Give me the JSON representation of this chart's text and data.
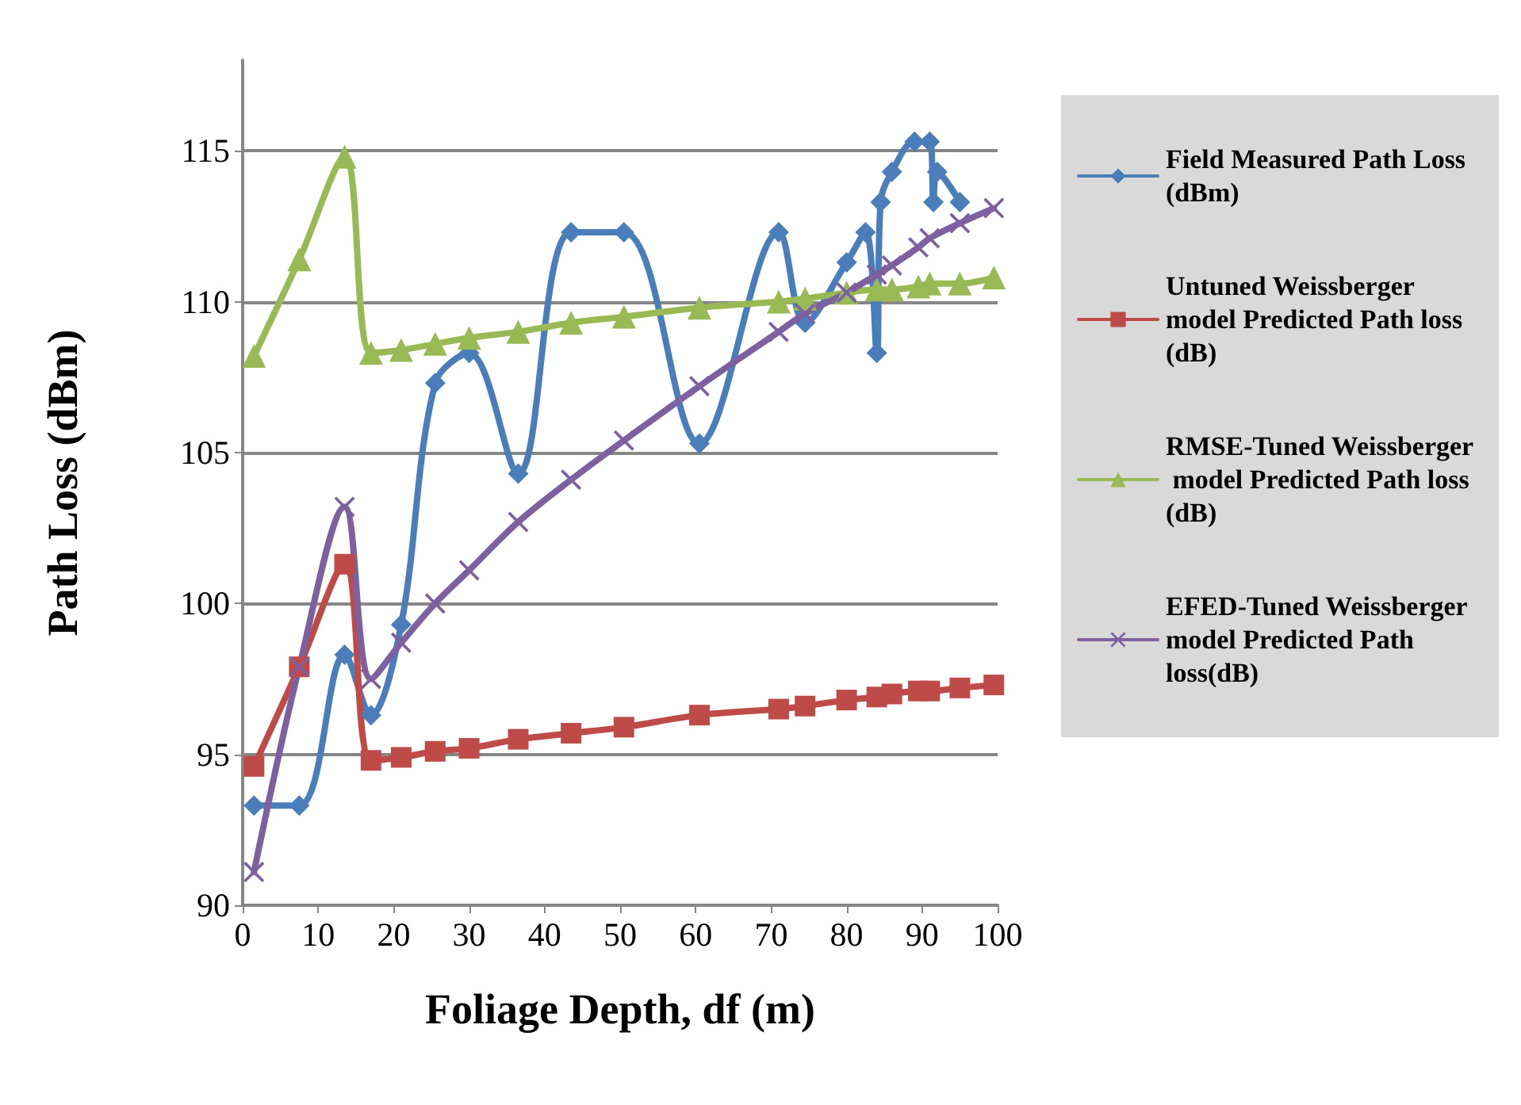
{
  "chart_data": {
    "type": "line",
    "xlabel": "Foliage Depth, df (m)",
    "ylabel": "Path Loss (dBm)",
    "xlim": [
      0,
      100
    ],
    "xticks": [
      0,
      10,
      20,
      30,
      40,
      50,
      60,
      70,
      80,
      90,
      100
    ],
    "ylim": [
      90,
      118
    ],
    "yticks": [
      90,
      95,
      100,
      105,
      110,
      115
    ],
    "grid": "y",
    "legend": "right",
    "line_style": "solid",
    "series": [
      {
        "name": "Field Measured Path Loss (dBm)",
        "color": "#4a7ebb",
        "marker": "diamond",
        "x": [
          1.5,
          7.5,
          13.5,
          17,
          21,
          25.5,
          30,
          36.5,
          43.5,
          50.5,
          60.5,
          71,
          74.5,
          80,
          82.5,
          84,
          84.5,
          86,
          89,
          91,
          91.5,
          92,
          95
        ],
        "values": [
          93.3,
          93.3,
          98.3,
          96.3,
          99.3,
          107.3,
          108.3,
          104.3,
          112.3,
          112.3,
          105.3,
          112.3,
          109.3,
          111.3,
          112.3,
          108.3,
          113.3,
          114.3,
          115.3,
          115.3,
          113.3,
          114.3,
          113.3
        ]
      },
      {
        "name": "Untuned Weissberger model Predicted Path loss (dB)",
        "color": "#be4b48",
        "marker": "square",
        "x": [
          1.5,
          7.5,
          13.5,
          17,
          21,
          25.5,
          30,
          36.5,
          43.5,
          50.5,
          60.5,
          71,
          74.5,
          80,
          84,
          86,
          89.5,
          91,
          95,
          99.5
        ],
        "values": [
          94.6,
          97.9,
          101.3,
          94.8,
          94.9,
          95.1,
          95.2,
          95.5,
          95.7,
          95.9,
          96.3,
          96.5,
          96.6,
          96.8,
          96.9,
          97.0,
          97.1,
          97.1,
          97.2,
          97.3
        ]
      },
      {
        "name": "RMSE-Tuned Weissberger model Predicted Path loss (dB)",
        "color": "#98b954",
        "marker": "triangle",
        "x": [
          1.5,
          7.5,
          13.5,
          17,
          21,
          25.5,
          30,
          36.5,
          43.5,
          50.5,
          60.5,
          71,
          74.5,
          80,
          84,
          86,
          89.5,
          91,
          95,
          99.5
        ],
        "values": [
          108.2,
          111.4,
          114.8,
          108.3,
          108.4,
          108.6,
          108.8,
          109.0,
          109.3,
          109.5,
          109.8,
          110.0,
          110.1,
          110.3,
          110.4,
          110.4,
          110.5,
          110.6,
          110.6,
          110.8
        ]
      },
      {
        "name": "EFED-Tuned Weissberger model Predicted Path loss(dB)",
        "color": "#7d60a0",
        "marker": "cross",
        "x": [
          1.5,
          7.5,
          13.5,
          17,
          21,
          25.5,
          30,
          36.5,
          43.5,
          50.5,
          60.5,
          71,
          74.5,
          80,
          84,
          86,
          89.5,
          91,
          95,
          99.5
        ],
        "values": [
          91.1,
          97.9,
          103.2,
          97.5,
          98.7,
          100.0,
          101.1,
          102.7,
          104.1,
          105.4,
          107.2,
          109.0,
          109.6,
          110.3,
          110.9,
          111.2,
          111.8,
          112.1,
          112.6,
          113.1
        ]
      }
    ]
  }
}
